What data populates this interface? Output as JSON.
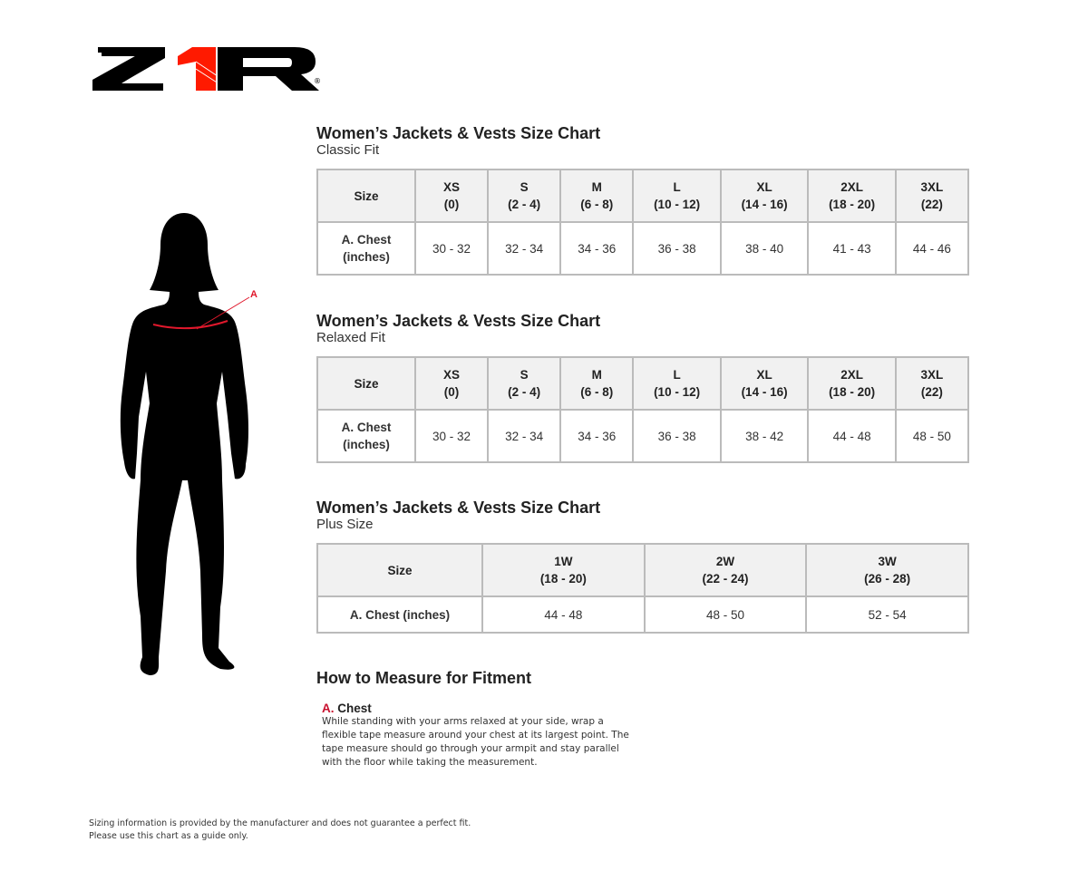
{
  "brand": {
    "logo_text": "Z1R",
    "registered": "®",
    "accent": "#ff1a00"
  },
  "charts": [
    {
      "title": "Women’s Jackets & Vests Size Chart",
      "subtitle": "Classic Fit",
      "header_label": "Size",
      "row_label": "A. Chest (inches)",
      "sizes": [
        {
          "name": "XS",
          "range": "(0)"
        },
        {
          "name": "S",
          "range": "(2 - 4)"
        },
        {
          "name": "M",
          "range": "(6 - 8)"
        },
        {
          "name": "L",
          "range": "(10 - 12)"
        },
        {
          "name": "XL",
          "range": "(14 - 16)"
        },
        {
          "name": "2XL",
          "range": "(18 - 20)"
        },
        {
          "name": "3XL",
          "range": "(22)"
        }
      ],
      "chest": [
        "30 - 32",
        "32 - 34",
        "34 - 36",
        "36 - 38",
        "38 - 40",
        "41 - 43",
        "44 - 46"
      ]
    },
    {
      "title": "Women’s Jackets & Vests Size Chart",
      "subtitle": "Relaxed Fit",
      "header_label": "Size",
      "row_label": "A. Chest (inches)",
      "sizes": [
        {
          "name": "XS",
          "range": "(0)"
        },
        {
          "name": "S",
          "range": "(2 - 4)"
        },
        {
          "name": "M",
          "range": "(6 - 8)"
        },
        {
          "name": "L",
          "range": "(10 - 12)"
        },
        {
          "name": "XL",
          "range": "(14 - 16)"
        },
        {
          "name": "2XL",
          "range": "(18 - 20)"
        },
        {
          "name": "3XL",
          "range": "(22)"
        }
      ],
      "chest": [
        "30 - 32",
        "32 - 34",
        "34 - 36",
        "36 - 38",
        "38 - 42",
        "44 - 48",
        "48 - 50"
      ]
    },
    {
      "title": "Women’s Jackets & Vests Size Chart",
      "subtitle": "Plus Size",
      "header_label": "Size",
      "row_label": "A. Chest (inches)",
      "sizes": [
        {
          "name": "1W",
          "range": "(18 - 20)"
        },
        {
          "name": "2W",
          "range": "(22 - 24)"
        },
        {
          "name": "3W",
          "range": "(26 - 28)"
        }
      ],
      "chest": [
        "44 - 48",
        "48 - 50",
        "52 - 54"
      ]
    }
  ],
  "figure": {
    "marker": "A"
  },
  "howto": {
    "title": "How to Measure for Fitment",
    "letter": "A.",
    "name": "Chest",
    "text": "While standing with your arms relaxed at your side, wrap a flexible tape measure around your chest at its largest point. The tape measure should go through your armpit and stay parallel with the floor while taking the measurement."
  },
  "disclaimer": [
    "Sizing information is provided by the manufacturer and does not guarantee a perfect fit.",
    "Please use this chart as a guide only."
  ]
}
